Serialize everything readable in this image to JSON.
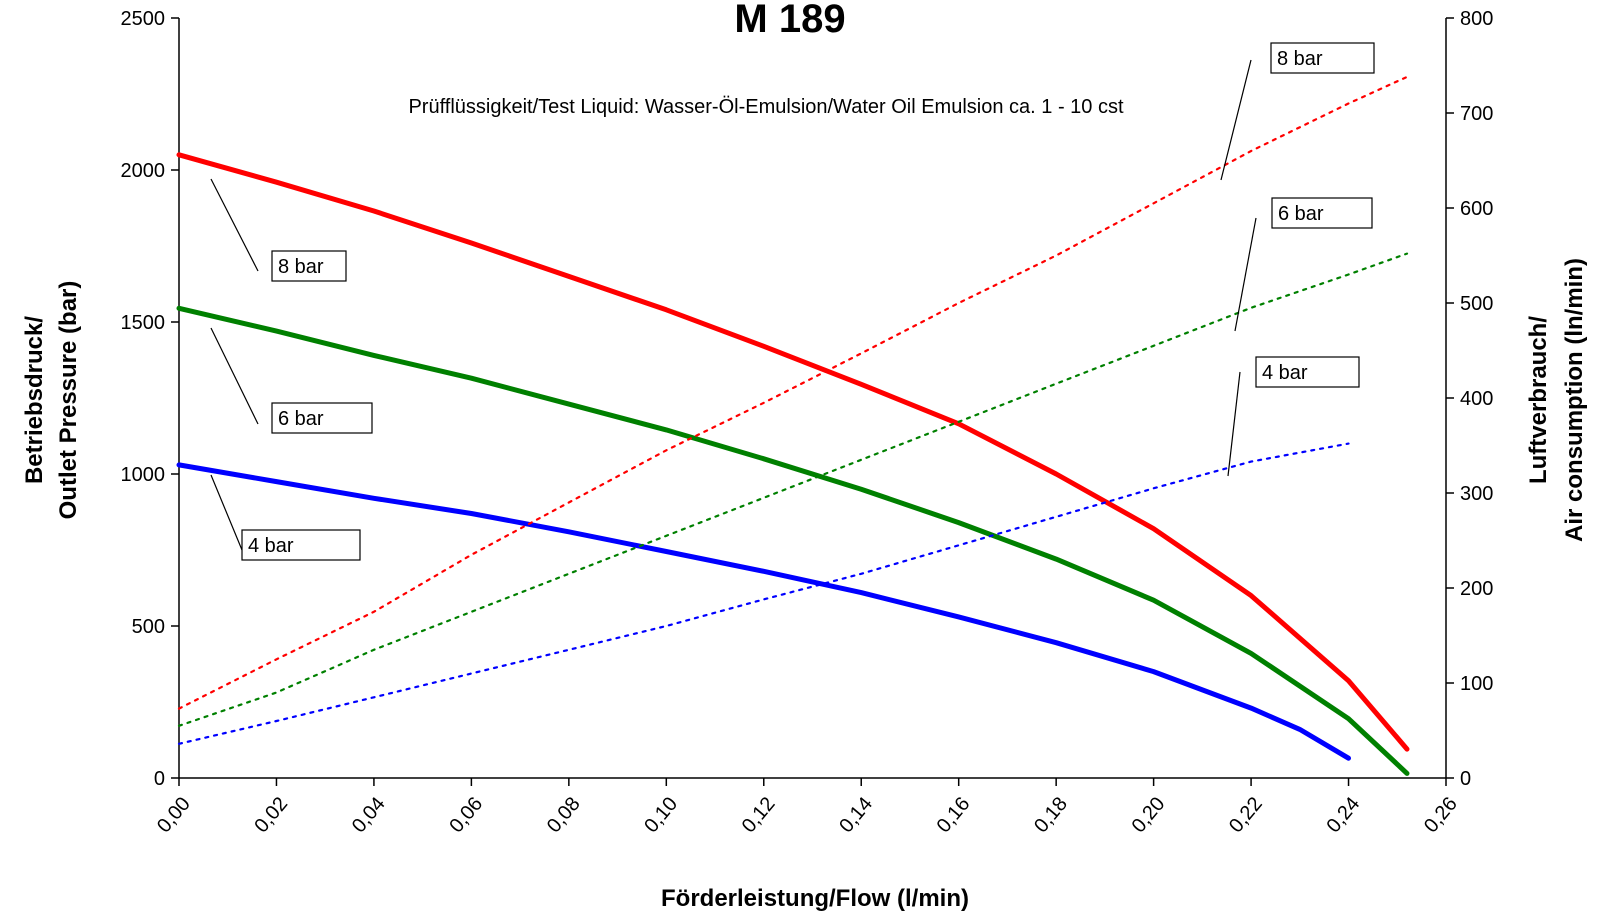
{
  "chart_data": {
    "type": "line",
    "title": "M 189",
    "subtitle": "Prüfflüssigkeit/Test Liquid: Wasser-Öl-Emulsion/Water Oil Emulsion ca. 1 - 10 cst",
    "xlabel": "Förderleistung/Flow (l/min)",
    "ylabel_left": [
      "Betriebsdruck/",
      "Outlet Pressure (bar)"
    ],
    "ylabel_right": [
      "Luftverbrauch/",
      "Air consumption (ln/min)"
    ],
    "xlim": [
      0,
      0.26
    ],
    "ylim_left": [
      0,
      2500
    ],
    "ylim_right": [
      0,
      800
    ],
    "x_ticks": [
      0,
      0.02,
      0.04,
      0.06,
      0.08,
      0.1,
      0.12,
      0.14,
      0.16,
      0.18,
      0.2,
      0.22,
      0.24,
      0.26
    ],
    "x_tick_labels": [
      "0,00",
      "0,02",
      "0,04",
      "0,06",
      "0,08",
      "0,10",
      "0,12",
      "0,14",
      "0,16",
      "0,18",
      "0,20",
      "0,22",
      "0,24",
      "0,26"
    ],
    "y_left_ticks": [
      0,
      500,
      1000,
      1500,
      2000,
      2500
    ],
    "y_left_tick_labels": [
      "0",
      "500",
      "1000",
      "1500",
      "2000",
      "2500"
    ],
    "y_right_ticks": [
      0,
      100,
      200,
      300,
      400,
      500,
      600,
      700,
      800
    ],
    "y_right_tick_labels": [
      "0",
      "100",
      "200",
      "300",
      "400",
      "500",
      "600",
      "700",
      "800"
    ],
    "grid": false,
    "series": [
      {
        "name": "8 bar",
        "axis": "left",
        "style": "solid",
        "color": "#ff0000",
        "x": [
          0,
          0.02,
          0.04,
          0.06,
          0.08,
          0.1,
          0.12,
          0.14,
          0.16,
          0.18,
          0.2,
          0.22,
          0.24,
          0.252
        ],
        "y": [
          2050,
          1960,
          1865,
          1760,
          1650,
          1540,
          1420,
          1295,
          1165,
          1000,
          820,
          600,
          320,
          95
        ]
      },
      {
        "name": "6 bar",
        "axis": "left",
        "style": "solid",
        "color": "#008000",
        "x": [
          0,
          0.02,
          0.04,
          0.06,
          0.08,
          0.1,
          0.12,
          0.14,
          0.16,
          0.18,
          0.2,
          0.22,
          0.24,
          0.252
        ],
        "y": [
          1545,
          1470,
          1390,
          1315,
          1230,
          1145,
          1050,
          950,
          840,
          720,
          585,
          410,
          195,
          15
        ]
      },
      {
        "name": "4 bar",
        "axis": "left",
        "style": "solid",
        "color": "#0000ff",
        "x": [
          0,
          0.02,
          0.04,
          0.06,
          0.08,
          0.1,
          0.12,
          0.14,
          0.16,
          0.18,
          0.2,
          0.22,
          0.23,
          0.24
        ],
        "y": [
          1030,
          975,
          920,
          870,
          810,
          745,
          680,
          610,
          530,
          445,
          350,
          230,
          160,
          65
        ]
      },
      {
        "name": "8 bar",
        "axis": "right",
        "style": "dotted",
        "color": "#ff0000",
        "x": [
          0,
          0.02,
          0.04,
          0.06,
          0.08,
          0.1,
          0.12,
          0.14,
          0.16,
          0.18,
          0.2,
          0.22,
          0.24,
          0.252
        ],
        "y": [
          73,
          125,
          175,
          235,
          290,
          345,
          395,
          447,
          500,
          550,
          605,
          660,
          710,
          738
        ]
      },
      {
        "name": "6 bar",
        "axis": "right",
        "style": "dotted",
        "color": "#008000",
        "x": [
          0,
          0.02,
          0.04,
          0.06,
          0.08,
          0.1,
          0.12,
          0.14,
          0.16,
          0.18,
          0.2,
          0.22,
          0.24,
          0.252
        ],
        "y": [
          55,
          90,
          135,
          175,
          215,
          255,
          295,
          335,
          375,
          415,
          455,
          495,
          530,
          552
        ]
      },
      {
        "name": "4 bar",
        "axis": "right",
        "style": "dotted",
        "color": "#0000ff",
        "x": [
          0,
          0.02,
          0.04,
          0.06,
          0.08,
          0.1,
          0.12,
          0.14,
          0.16,
          0.18,
          0.2,
          0.22,
          0.24
        ],
        "y": [
          36,
          60,
          85,
          110,
          135,
          160,
          188,
          215,
          245,
          275,
          305,
          333,
          352
        ]
      }
    ],
    "annotations": [
      {
        "text": "8 bar",
        "side": "left",
        "target_series": 0
      },
      {
        "text": "6 bar",
        "side": "left",
        "target_series": 1
      },
      {
        "text": "4 bar",
        "side": "left",
        "target_series": 2
      },
      {
        "text": "8 bar",
        "side": "right",
        "target_series": 3
      },
      {
        "text": "6 bar",
        "side": "right",
        "target_series": 4
      },
      {
        "text": "4 bar",
        "side": "right",
        "target_series": 5
      }
    ]
  }
}
